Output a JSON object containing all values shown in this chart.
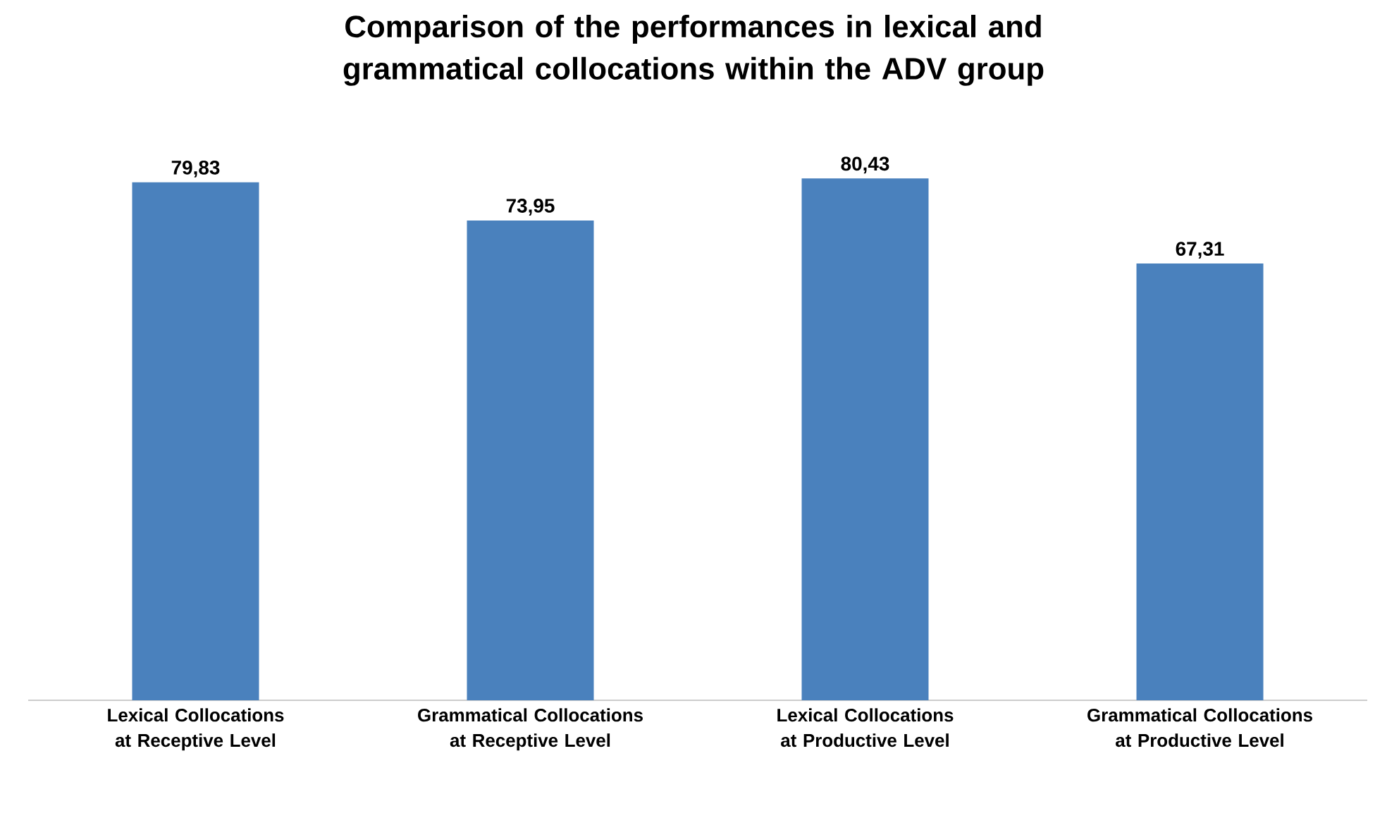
{
  "chart_data": {
    "type": "bar",
    "title": "Comparison  of the performances in lexical and grammatical collocations within the ADV  group",
    "categories": [
      "Lexical Collocations at Receptive Level",
      "Grammatical Collocations at Receptive Level",
      "Lexical Collocations at Productive Level",
      "Grammatical Collocations at Productive Level"
    ],
    "values": [
      79.83,
      73.95,
      80.43,
      67.31
    ],
    "value_labels": [
      "79,83",
      "73,95",
      "80,43",
      "67,31"
    ],
    "color": "#4a81bd"
  }
}
